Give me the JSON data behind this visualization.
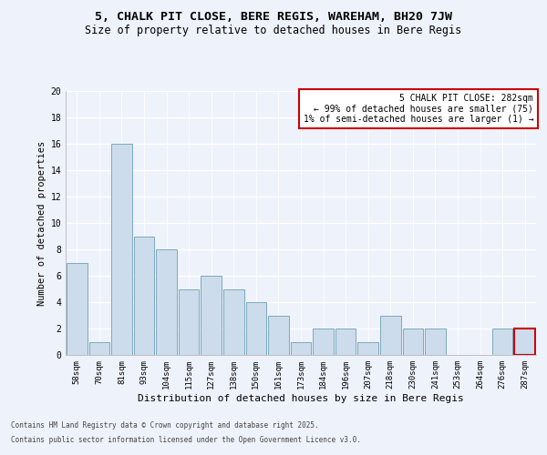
{
  "title_line1": "5, CHALK PIT CLOSE, BERE REGIS, WAREHAM, BH20 7JW",
  "title_line2": "Size of property relative to detached houses in Bere Regis",
  "xlabel": "Distribution of detached houses by size in Bere Regis",
  "ylabel": "Number of detached properties",
  "categories": [
    "58sqm",
    "70sqm",
    "81sqm",
    "93sqm",
    "104sqm",
    "115sqm",
    "127sqm",
    "138sqm",
    "150sqm",
    "161sqm",
    "173sqm",
    "184sqm",
    "196sqm",
    "207sqm",
    "218sqm",
    "230sqm",
    "241sqm",
    "253sqm",
    "264sqm",
    "276sqm",
    "287sqm"
  ],
  "values": [
    7,
    1,
    16,
    9,
    8,
    5,
    6,
    5,
    4,
    3,
    1,
    2,
    2,
    1,
    3,
    2,
    2,
    0,
    0,
    2,
    2
  ],
  "bar_color": "#ccdcec",
  "bar_edge_color": "#7aaabb",
  "highlight_bar_index": 20,
  "highlight_edge_color": "#cc0000",
  "annotation_text": "5 CHALK PIT CLOSE: 282sqm\n← 99% of detached houses are smaller (75)\n1% of semi-detached houses are larger (1) →",
  "annotation_box_color": "#ffffff",
  "annotation_box_edge_color": "#cc0000",
  "footer_line1": "Contains HM Land Registry data © Crown copyright and database right 2025.",
  "footer_line2": "Contains public sector information licensed under the Open Government Licence v3.0.",
  "background_color": "#eef2fb",
  "grid_color": "#ffffff",
  "ylim": [
    0,
    20
  ],
  "yticks": [
    0,
    2,
    4,
    6,
    8,
    10,
    12,
    14,
    16,
    18,
    20
  ],
  "title1_fontsize": 9.5,
  "title2_fontsize": 8.5,
  "xlabel_fontsize": 8,
  "ylabel_fontsize": 7.5,
  "tick_fontsize": 6.5,
  "annot_fontsize": 7,
  "footer_fontsize": 5.5
}
